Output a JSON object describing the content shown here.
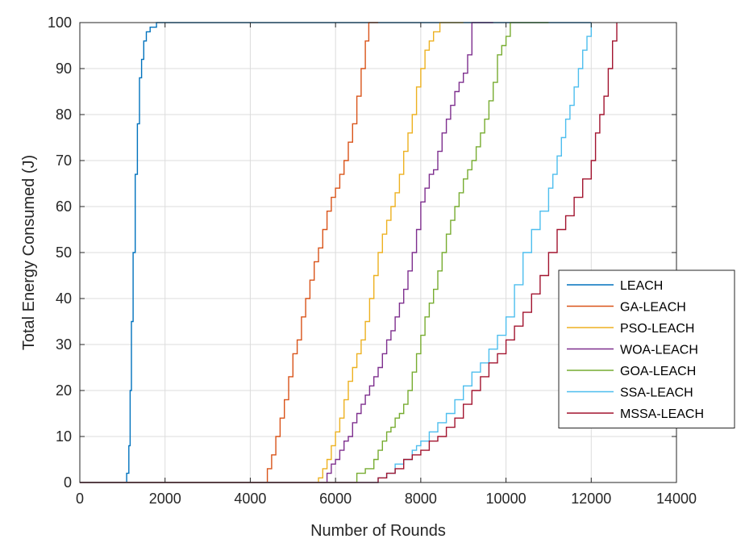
{
  "chart_data": {
    "type": "line",
    "title": "",
    "xlabel": "Number of Rounds",
    "ylabel": "Total Energy Consumed (J)",
    "xlim": [
      0,
      14000
    ],
    "ylim": [
      0,
      100
    ],
    "xticks": [
      0,
      2000,
      4000,
      6000,
      8000,
      10000,
      12000,
      14000
    ],
    "yticks": [
      0,
      10,
      20,
      30,
      40,
      50,
      60,
      70,
      80,
      90,
      100
    ],
    "grid": true,
    "legend_position": "center-right",
    "series": [
      {
        "name": "LEACH",
        "color": "#0072BD",
        "x": [
          0,
          1060,
          1100,
          1150,
          1180,
          1210,
          1250,
          1300,
          1350,
          1400,
          1450,
          1500,
          1560,
          1650,
          1800,
          7000,
          12000
        ],
        "y": [
          0,
          0,
          2,
          8,
          20,
          35,
          50,
          67,
          78,
          88,
          92,
          96,
          98,
          99,
          100,
          100,
          100
        ]
      },
      {
        "name": "GA-LEACH",
        "color": "#D95319",
        "x": [
          0,
          4300,
          4400,
          4500,
          4600,
          4700,
          4800,
          4900,
          5000,
          5100,
          5200,
          5300,
          5400,
          5500,
          5600,
          5700,
          5800,
          5900,
          6000,
          6100,
          6200,
          6300,
          6400,
          6500,
          6600,
          6700,
          6780,
          7000
        ],
        "y": [
          0,
          0,
          3,
          6,
          10,
          14,
          18,
          23,
          28,
          31,
          36,
          40,
          44,
          48,
          51,
          55,
          59,
          62,
          64,
          67,
          70,
          74,
          78,
          84,
          90,
          96,
          100,
          100
        ]
      },
      {
        "name": "PSO-LEACH",
        "color": "#EDB120",
        "x": [
          0,
          5500,
          5600,
          5700,
          5800,
          5900,
          6000,
          6100,
          6200,
          6300,
          6400,
          6500,
          6600,
          6700,
          6800,
          6900,
          7000,
          7100,
          7200,
          7300,
          7400,
          7500,
          7600,
          7700,
          7800,
          7900,
          8000,
          8100,
          8200,
          8300,
          8450,
          9000
        ],
        "y": [
          0,
          0,
          1,
          3,
          5,
          8,
          11,
          14,
          18,
          22,
          25,
          28,
          31,
          35,
          40,
          45,
          50,
          54,
          57,
          60,
          63,
          67,
          72,
          76,
          80,
          86,
          90,
          94,
          96,
          98,
          100,
          100
        ]
      },
      {
        "name": "WOA-LEACH",
        "color": "#7E2F8E",
        "x": [
          0,
          5700,
          5800,
          5900,
          6000,
          6100,
          6200,
          6300,
          6400,
          6500,
          6600,
          6700,
          6800,
          6900,
          7000,
          7100,
          7200,
          7300,
          7400,
          7500,
          7600,
          7700,
          7800,
          7900,
          8000,
          8100,
          8200,
          8300,
          8400,
          8500,
          8600,
          8700,
          8800,
          8900,
          9000,
          9100,
          9200,
          9700
        ],
        "y": [
          0,
          0,
          2,
          4,
          5,
          7,
          9,
          10,
          13,
          15,
          17,
          19,
          21,
          23,
          25,
          28,
          31,
          33,
          36,
          39,
          42,
          46,
          50,
          55,
          61,
          64,
          67,
          68,
          72,
          76,
          79,
          82,
          85,
          87,
          89,
          93,
          100,
          100
        ]
      },
      {
        "name": "GOA-LEACH",
        "color": "#77AC30",
        "x": [
          0,
          6300,
          6500,
          6700,
          6900,
          7000,
          7100,
          7200,
          7300,
          7400,
          7500,
          7600,
          7700,
          7800,
          7900,
          8000,
          8100,
          8200,
          8300,
          8400,
          8500,
          8600,
          8700,
          8800,
          8900,
          9000,
          9100,
          9200,
          9300,
          9400,
          9500,
          9600,
          9700,
          9800,
          9900,
          10000,
          10100,
          11000
        ],
        "y": [
          0,
          0,
          2,
          3,
          5,
          7,
          9,
          11,
          12,
          14,
          15,
          17,
          20,
          24,
          28,
          32,
          36,
          39,
          42,
          46,
          50,
          54,
          57,
          60,
          63,
          66,
          68,
          70,
          73,
          76,
          79,
          83,
          87,
          93,
          95,
          97,
          100,
          100
        ]
      },
      {
        "name": "SSA-LEACH",
        "color": "#4DBEEE",
        "x": [
          0,
          6800,
          7000,
          7200,
          7400,
          7600,
          7800,
          7900,
          8000,
          8200,
          8400,
          8600,
          8800,
          9000,
          9200,
          9400,
          9600,
          9800,
          10000,
          10200,
          10400,
          10600,
          10800,
          11000,
          11100,
          11200,
          11300,
          11400,
          11500,
          11600,
          11700,
          11800,
          11900,
          12000
        ],
        "y": [
          0,
          0,
          1,
          2,
          4,
          5,
          7,
          8,
          9,
          11,
          13,
          15,
          18,
          21,
          24,
          26,
          29,
          32,
          36,
          43,
          50,
          55,
          59,
          64,
          67,
          71,
          75,
          79,
          82,
          86,
          90,
          94,
          97,
          100
        ]
      },
      {
        "name": "MSSA-LEACH",
        "color": "#A2142F",
        "x": [
          0,
          6900,
          7000,
          7200,
          7400,
          7600,
          7800,
          8000,
          8200,
          8400,
          8600,
          8800,
          9000,
          9200,
          9400,
          9600,
          9800,
          10000,
          10200,
          10400,
          10600,
          10800,
          11000,
          11200,
          11400,
          11600,
          11800,
          12000,
          12100,
          12200,
          12300,
          12400,
          12500,
          12600
        ],
        "y": [
          0,
          0,
          1,
          2,
          3,
          5,
          6,
          7,
          9,
          10,
          12,
          14,
          17,
          20,
          23,
          26,
          28,
          31,
          34,
          37,
          41,
          45,
          50,
          55,
          58,
          62,
          66,
          70,
          76,
          80,
          84,
          90,
          96,
          100
        ]
      }
    ]
  }
}
